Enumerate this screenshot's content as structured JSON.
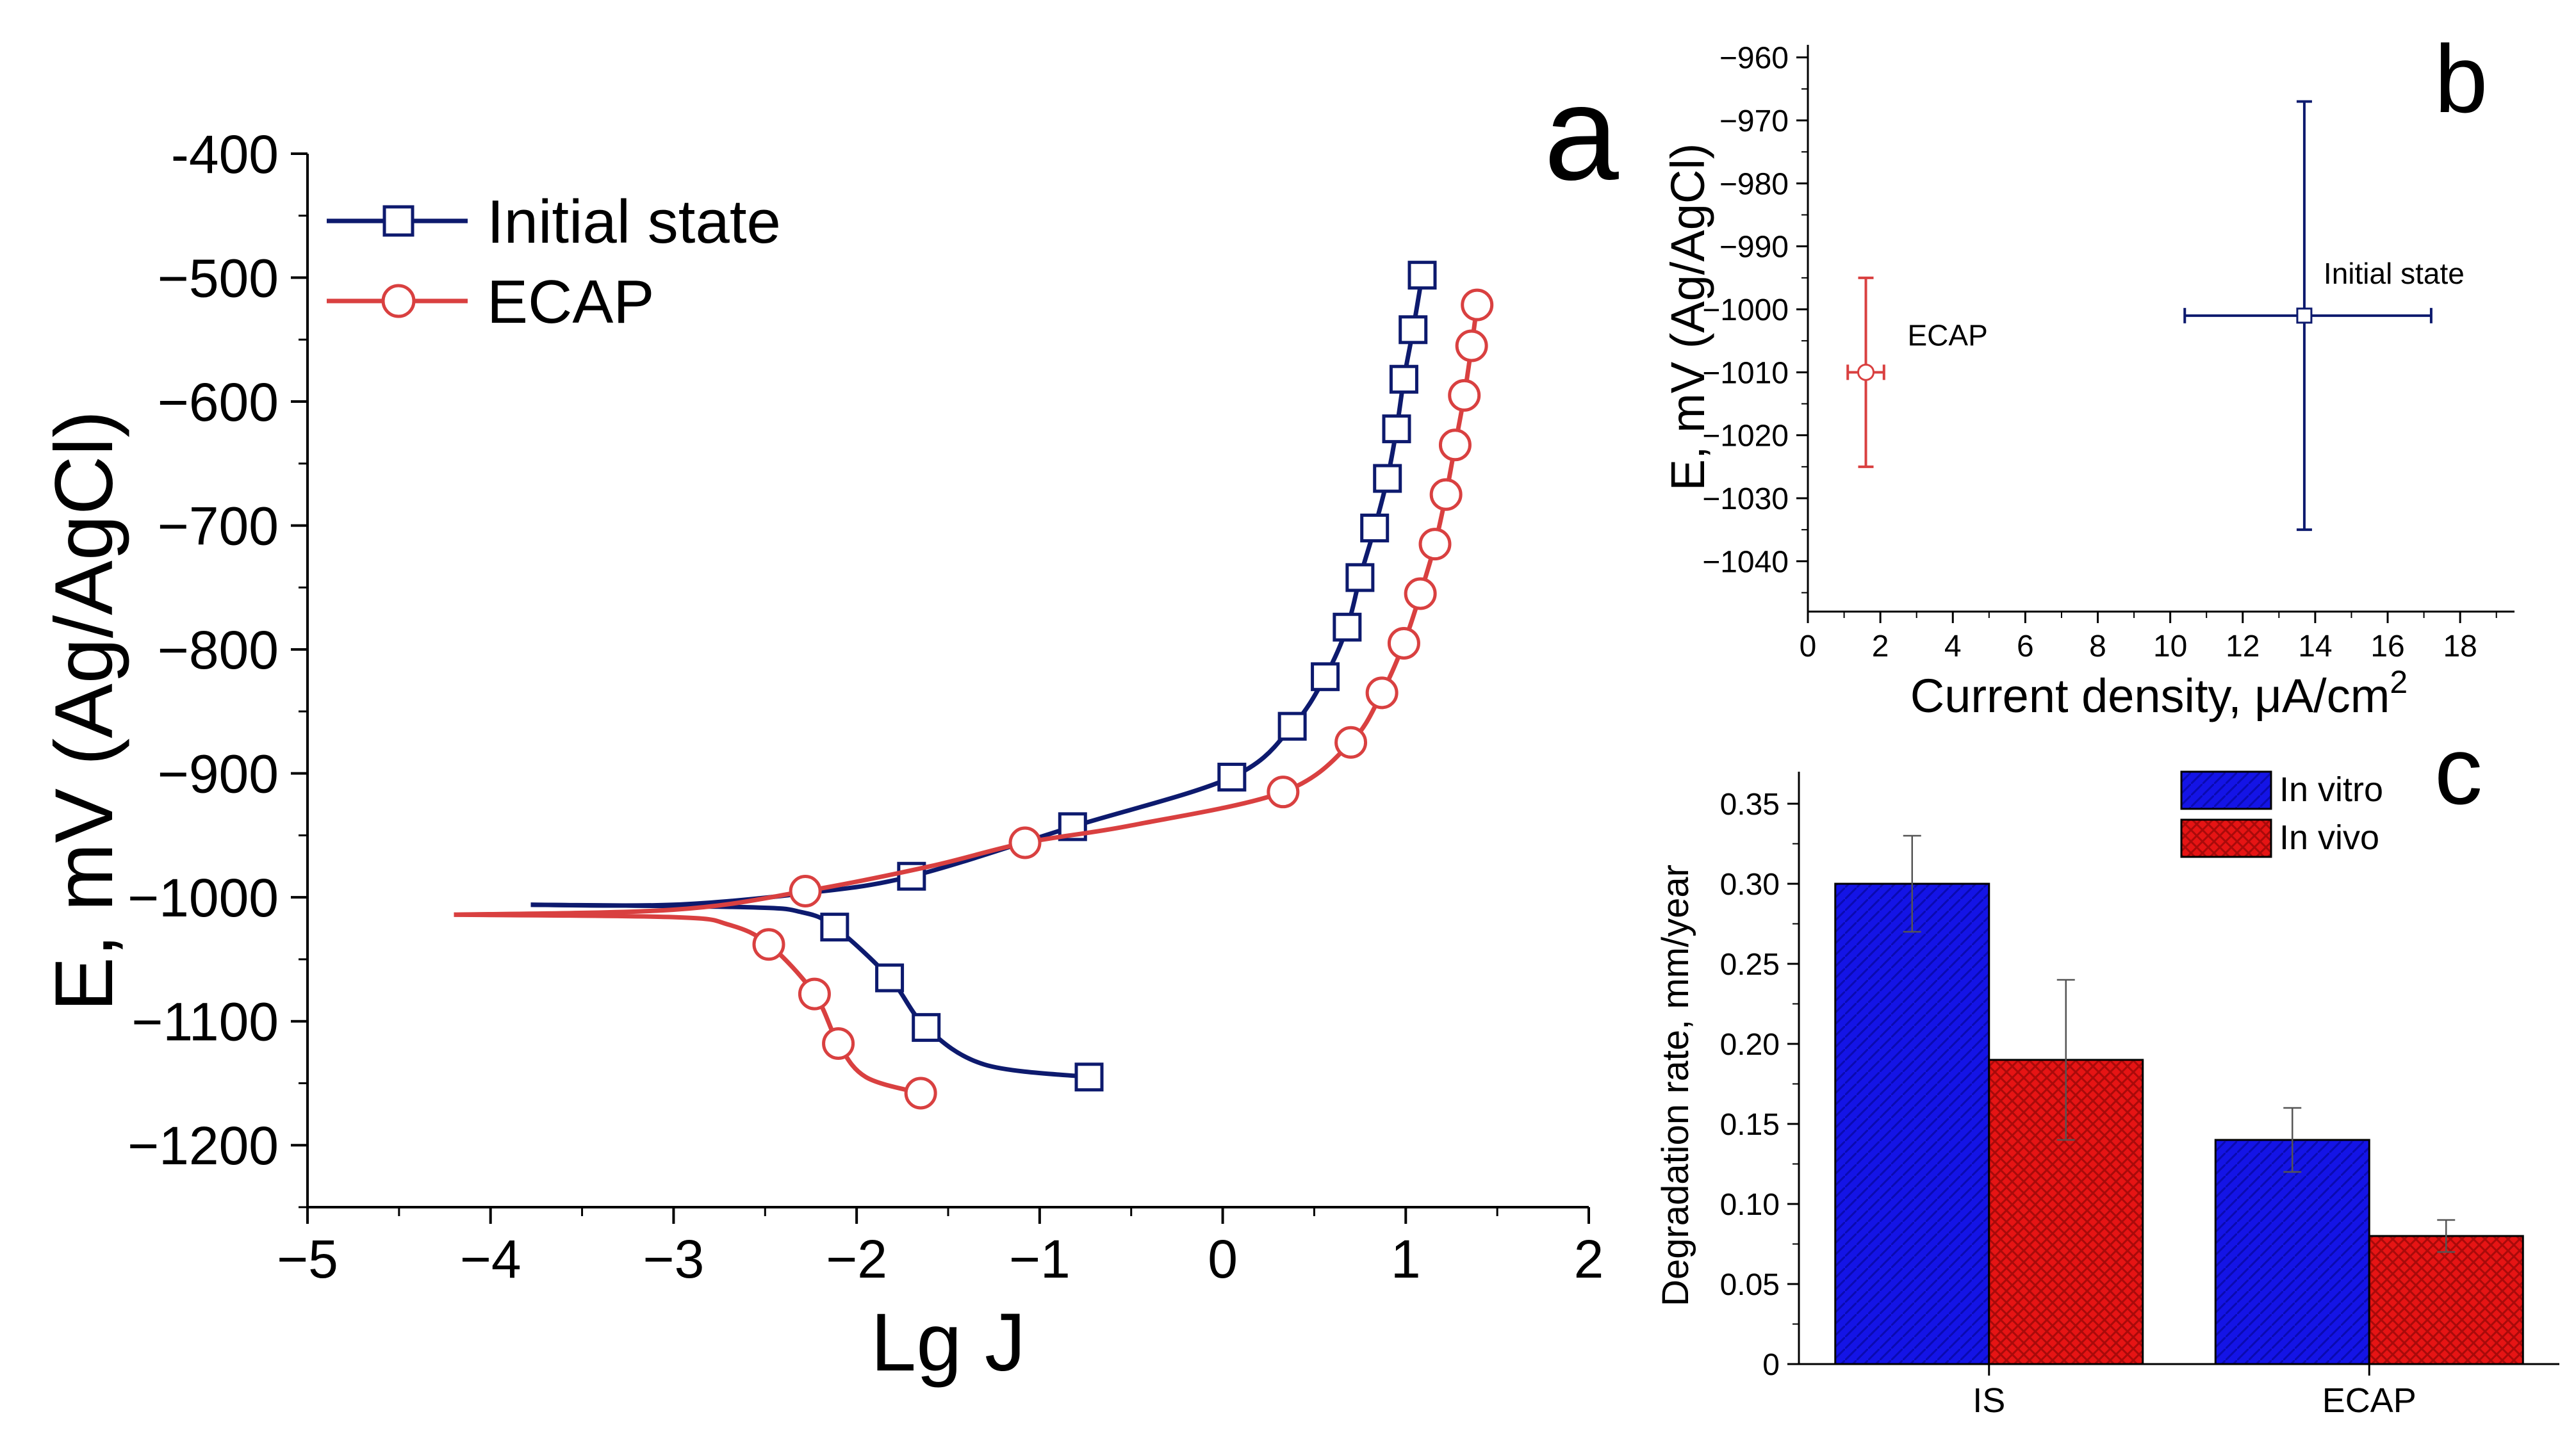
{
  "chart_data": [
    {
      "panel": "a",
      "type": "line",
      "title": "",
      "panel_label": "a",
      "xlabel": "Lg J",
      "ylabel": "E, mV (Ag/AgCl)",
      "xlim": [
        -5,
        2
      ],
      "ylim": [
        -1250,
        -400
      ],
      "xticks": [
        -5,
        -4,
        -3,
        -2,
        -1,
        0,
        1,
        2
      ],
      "yticks": [
        -400,
        -500,
        -600,
        -700,
        -800,
        -900,
        -1000,
        -1100,
        -1200
      ],
      "xtick_labels": [
        "−5",
        "−4",
        "−3",
        "−2",
        "−1",
        "0",
        "1",
        "2"
      ],
      "ytick_labels": [
        "-400",
        "−500",
        "−600",
        "−700",
        "−800",
        "−900",
        "−1000",
        "−1100",
        "−1200"
      ],
      "legend_position": "top-left",
      "series": [
        {
          "name": "Initial state",
          "color": "#0d1a6e",
          "marker": "square",
          "anodic": [
            [
              -3.78,
              -1006
            ],
            [
              -3.0,
              -1006
            ],
            [
              -2.3,
              -997
            ],
            [
              -1.7,
              -983
            ],
            [
              -0.82,
              -943
            ],
            [
              0.05,
              -903
            ],
            [
              0.38,
              -862
            ],
            [
              0.56,
              -822
            ],
            [
              0.68,
              -782
            ],
            [
              0.75,
              -742
            ],
            [
              0.83,
              -702
            ],
            [
              0.9,
              -662
            ],
            [
              0.95,
              -622
            ],
            [
              0.99,
              -582
            ],
            [
              1.04,
              -542
            ],
            [
              1.09,
              -498
            ]
          ],
          "cathodic": [
            [
              -3.78,
              -1006
            ],
            [
              -2.6,
              -1008
            ],
            [
              -2.3,
              -1012
            ],
            [
              -2.12,
              -1024
            ],
            [
              -1.82,
              -1065
            ],
            [
              -1.62,
              -1105
            ],
            [
              -1.3,
              -1135
            ],
            [
              -0.73,
              -1145
            ]
          ],
          "anodic_markers": [
            [
              -1.7,
              -983
            ],
            [
              -0.82,
              -943
            ],
            [
              0.05,
              -903
            ],
            [
              0.38,
              -862
            ],
            [
              0.56,
              -822
            ],
            [
              0.68,
              -782
            ],
            [
              0.75,
              -742
            ],
            [
              0.83,
              -702
            ],
            [
              0.9,
              -662
            ],
            [
              0.95,
              -622
            ],
            [
              0.99,
              -582
            ],
            [
              1.04,
              -542
            ],
            [
              1.09,
              -498
            ]
          ],
          "cathodic_markers": [
            [
              -2.12,
              -1024
            ],
            [
              -1.82,
              -1065
            ],
            [
              -1.62,
              -1105
            ],
            [
              -0.73,
              -1145
            ]
          ]
        },
        {
          "name": "ECAP",
          "color": "#d94040",
          "marker": "circle",
          "anodic": [
            [
              -4.2,
              -1014
            ],
            [
              -3.0,
              -1010
            ],
            [
              -2.28,
              -995
            ],
            [
              -1.6,
              -975
            ],
            [
              -1.08,
              -956
            ],
            [
              -0.5,
              -942
            ],
            [
              0.33,
              -915
            ],
            [
              0.7,
              -875
            ],
            [
              0.87,
              -835
            ],
            [
              0.99,
              -795
            ],
            [
              1.08,
              -755
            ],
            [
              1.16,
              -715
            ],
            [
              1.22,
              -675
            ],
            [
              1.27,
              -635
            ],
            [
              1.32,
              -595
            ],
            [
              1.36,
              -555
            ],
            [
              1.39,
              -522
            ]
          ],
          "cathodic": [
            [
              -4.2,
              -1014
            ],
            [
              -3.0,
              -1016
            ],
            [
              -2.7,
              -1022
            ],
            [
              -2.48,
              -1038
            ],
            [
              -2.23,
              -1078
            ],
            [
              -2.1,
              -1118
            ],
            [
              -1.95,
              -1145
            ],
            [
              -1.65,
              -1158
            ]
          ],
          "anodic_markers": [
            [
              -2.28,
              -995
            ],
            [
              -1.08,
              -956
            ],
            [
              0.33,
              -915
            ],
            [
              0.7,
              -875
            ],
            [
              0.87,
              -835
            ],
            [
              0.99,
              -795
            ],
            [
              1.08,
              -755
            ],
            [
              1.16,
              -715
            ],
            [
              1.22,
              -675
            ],
            [
              1.27,
              -635
            ],
            [
              1.32,
              -595
            ],
            [
              1.36,
              -555
            ],
            [
              1.39,
              -522
            ]
          ],
          "cathodic_markers": [
            [
              -2.48,
              -1038
            ],
            [
              -2.23,
              -1078
            ],
            [
              -2.1,
              -1118
            ],
            [
              -1.65,
              -1158
            ]
          ]
        }
      ]
    },
    {
      "panel": "b",
      "type": "scatter",
      "panel_label": "b",
      "xlabel": "Current density, μA/cm",
      "xlabel_sup": "2",
      "ylabel": "E, mV (Ag/AgCl)",
      "xlim": [
        0,
        19.5
      ],
      "ylim": [
        -1048,
        -958
      ],
      "xticks": [
        0,
        2,
        4,
        6,
        8,
        10,
        12,
        14,
        16,
        18
      ],
      "xtick_labels": [
        "0",
        "2",
        "4",
        "6",
        "8",
        "10",
        "12",
        "14",
        "16",
        "18"
      ],
      "yticks": [
        -960,
        -970,
        -980,
        -990,
        -1000,
        -1010,
        -1020,
        -1030,
        -1040
      ],
      "ytick_labels": [
        "−960",
        "−970",
        "−980",
        "−990",
        "−1000",
        "−1010",
        "−1020",
        "−1030",
        "−1040"
      ],
      "points": [
        {
          "name": "ECAP",
          "color": "#d94040",
          "marker": "circle",
          "x": 1.6,
          "y": -1010,
          "xerr": 0.5,
          "yerr_low": -1025,
          "yerr_high": -995
        },
        {
          "name": "Initial state",
          "color": "#0d1a6e",
          "marker": "square",
          "x": 13.7,
          "y": -1001,
          "xerr_low": 10.4,
          "xerr_high": 17.2,
          "yerr_low": -1035,
          "yerr_high": -967
        }
      ]
    },
    {
      "panel": "c",
      "type": "bar",
      "panel_label": "c",
      "xlabel": "",
      "ylabel": "Degradation rate, mm/year",
      "ylim": [
        0,
        0.37
      ],
      "yticks": [
        0,
        0.05,
        0.1,
        0.15,
        0.2,
        0.25,
        0.3,
        0.35
      ],
      "ytick_labels": [
        "0",
        "0.05",
        "0.10",
        "0.15",
        "0.20",
        "0.25",
        "0.30",
        "0.35"
      ],
      "categories": [
        "IS",
        "ECAP"
      ],
      "legend_position": "top-right",
      "series": [
        {
          "name": "In vitro",
          "color": "#1414e6",
          "values": [
            0.3,
            0.14
          ],
          "errors": [
            0.03,
            0.02
          ]
        },
        {
          "name": "In vivo",
          "color": "#e61414",
          "values": [
            0.19,
            0.08
          ],
          "errors": [
            0.05,
            0.01
          ]
        }
      ]
    }
  ]
}
